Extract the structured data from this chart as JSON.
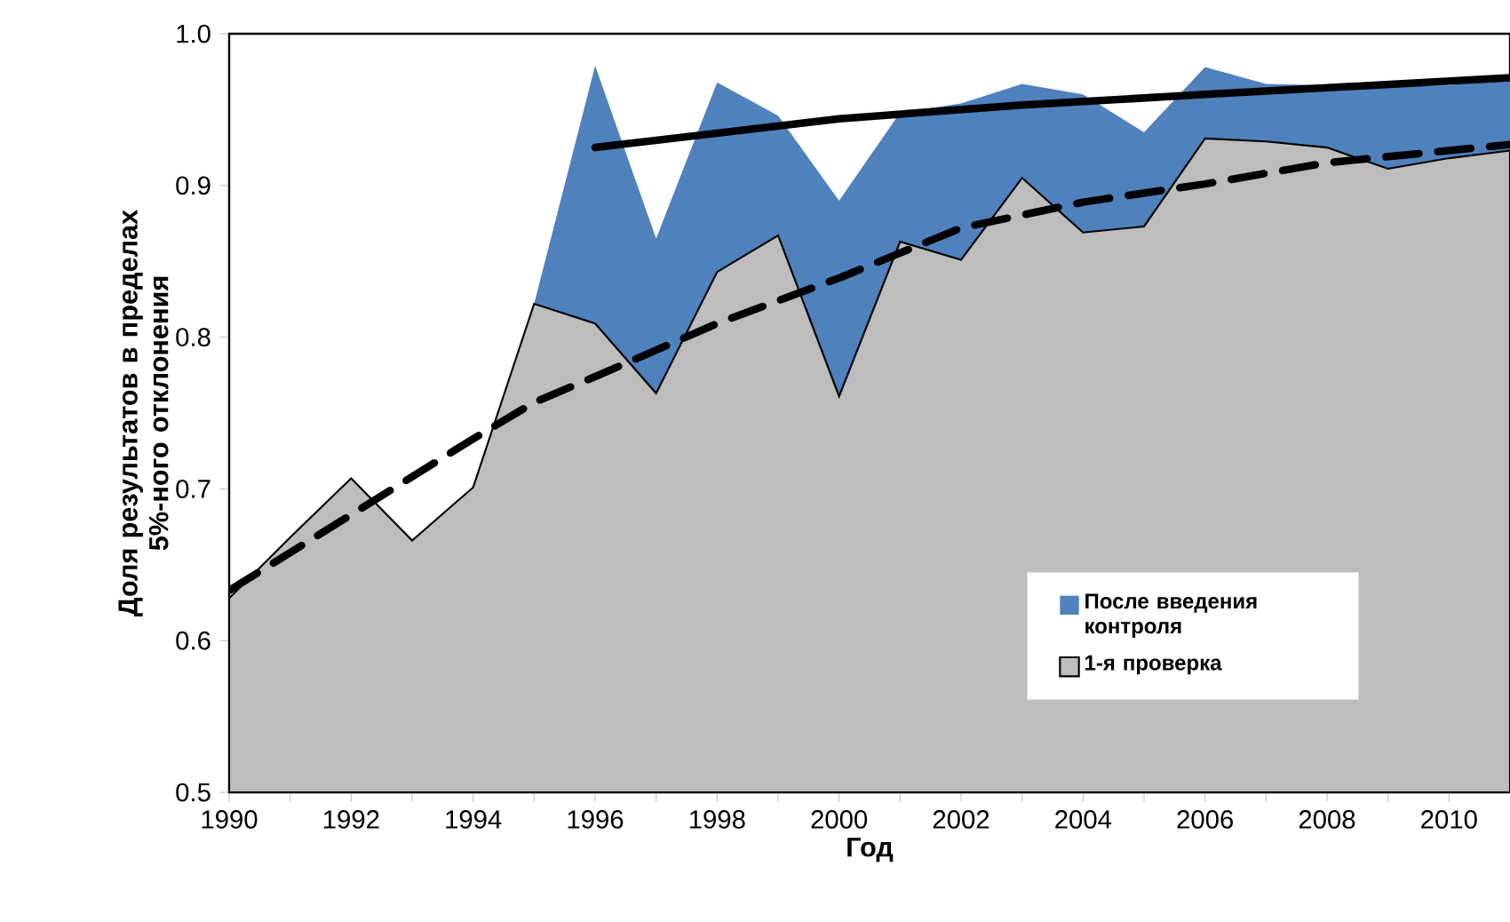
{
  "chart_data": {
    "type": "area",
    "xlabel": "Год",
    "ylabel": "Доля результатов в пределах 5%-ного отклонения",
    "x": [
      1990,
      1991,
      1992,
      1993,
      1994,
      1995,
      1996,
      1997,
      1998,
      1999,
      2000,
      2001,
      2002,
      2003,
      2004,
      2005,
      2006,
      2007,
      2008,
      2009,
      2010,
      2011
    ],
    "series": [
      {
        "name": "После введения контроля",
        "color": "#4f81bd",
        "values": [
          null,
          null,
          null,
          null,
          null,
          0.822,
          0.979,
          0.865,
          0.968,
          0.946,
          0.89,
          0.948,
          0.954,
          0.967,
          0.96,
          0.935,
          0.978,
          0.967,
          0.966,
          0.965,
          0.966,
          0.97
        ]
      },
      {
        "name": "1-я проверка",
        "color": "#bdbdbd",
        "values": [
          0.628,
          0.668,
          0.707,
          0.666,
          0.701,
          0.822,
          0.809,
          0.763,
          0.843,
          0.867,
          0.761,
          0.863,
          0.851,
          0.905,
          0.869,
          0.873,
          0.931,
          0.929,
          0.925,
          0.911,
          0.918,
          0.923
        ]
      },
      {
        "type": "line",
        "color": "#000000",
        "line_style": "solid",
        "x": [
          1996,
          2000,
          2003,
          2006,
          2011
        ],
        "values": [
          0.925,
          0.944,
          0.953,
          0.96,
          0.971
        ]
      },
      {
        "type": "line",
        "color": "#000000",
        "line_style": "dashed",
        "x": [
          1990,
          1992,
          1994,
          1995,
          1996,
          1998,
          2000,
          2002,
          2004,
          2006,
          2008,
          2011
        ],
        "values": [
          0.633,
          0.683,
          0.733,
          0.757,
          0.774,
          0.809,
          0.839,
          0.872,
          0.889,
          0.901,
          0.915,
          0.927
        ]
      }
    ],
    "xlim": [
      1990,
      2011
    ],
    "xticks": [
      1990,
      1992,
      1994,
      1996,
      1998,
      2000,
      2002,
      2004,
      2006,
      2008,
      2010
    ],
    "ylim": [
      0.5,
      1.0
    ],
    "yticks": [
      0.5,
      0.6,
      0.7,
      0.8,
      0.9,
      {
        "value": 1.0,
        "label": "1.0"
      }
    ],
    "legend": "bottom right",
    "marker": "none",
    "grid": false
  }
}
